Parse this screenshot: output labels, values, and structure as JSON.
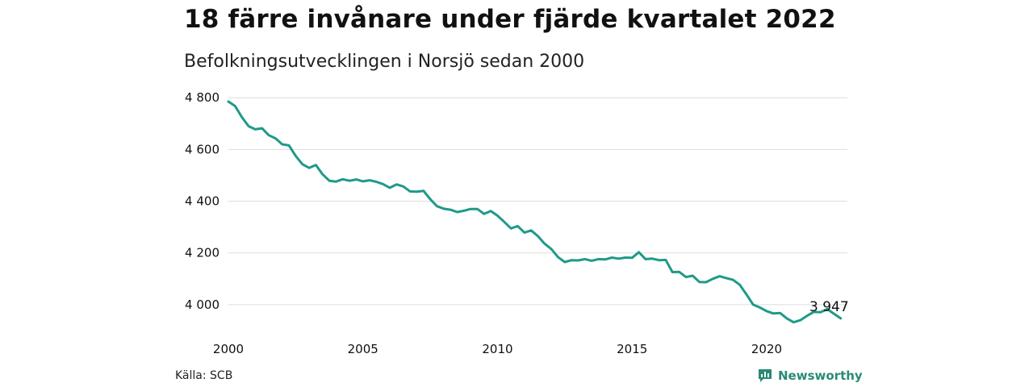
{
  "title": "18 färre invånare under fjärde kvartalet 2022",
  "subtitle": "Befolkningsutvecklingen i Norsjö sedan 2000",
  "source": "Källa: SCB",
  "brand": {
    "name": "Newsworthy",
    "icon": "newsworthy-logo-icon",
    "color": "#2a8a76"
  },
  "chart_data": {
    "type": "line",
    "title": "18 färre invånare under fjärde kvartalet 2022",
    "subtitle": "Befolkningsutvecklingen i Norsjö sedan 2000",
    "xlabel": "",
    "ylabel": "",
    "line_color": "#1f9a88",
    "grid": true,
    "xlim": [
      2000,
      2023
    ],
    "ylim": [
      3900,
      4810
    ],
    "y_ticks": [
      4000,
      4200,
      4400,
      4600,
      4800
    ],
    "y_tick_labels": [
      "4 000",
      "4 200",
      "4 400",
      "4 600",
      "4 800"
    ],
    "x_ticks": [
      2000,
      2005,
      2010,
      2015,
      2020
    ],
    "x_tick_labels": [
      "2000",
      "2005",
      "2010",
      "2015",
      "2020"
    ],
    "series": [
      {
        "x": [
          2000.0,
          2000.25,
          2000.5,
          2000.75,
          2001.0,
          2001.25,
          2001.5,
          2001.75,
          2002.0,
          2002.25,
          2002.5,
          2002.75,
          2003.0,
          2003.25,
          2003.5,
          2003.75,
          2004.0,
          2004.25,
          2004.5,
          2004.75,
          2005.0,
          2005.25,
          2005.5,
          2005.75,
          2006.0,
          2006.25,
          2006.5,
          2006.75,
          2007.0,
          2007.25,
          2007.5,
          2007.75,
          2008.0,
          2008.25,
          2008.5,
          2008.75,
          2009.0,
          2009.25,
          2009.5,
          2009.75,
          2010.0,
          2010.25,
          2010.5,
          2010.75,
          2011.0,
          2011.25,
          2011.5,
          2011.75,
          2012.0,
          2012.25,
          2012.5,
          2012.75,
          2013.0,
          2013.25,
          2013.5,
          2013.75,
          2014.0,
          2014.25,
          2014.5,
          2014.75,
          2015.0,
          2015.25,
          2015.5,
          2015.75,
          2016.0,
          2016.25,
          2016.5,
          2016.75,
          2017.0,
          2017.25,
          2017.5,
          2017.75,
          2018.0,
          2018.25,
          2018.5,
          2018.75,
          2019.0,
          2019.25,
          2019.5,
          2019.75,
          2020.0,
          2020.25,
          2020.5,
          2020.75,
          2021.0,
          2021.25,
          2021.5,
          2021.75,
          2022.0,
          2022.25,
          2022.5,
          2022.75
        ],
        "values": [
          4785,
          4768,
          4725,
          4690,
          4678,
          4682,
          4655,
          4643,
          4620,
          4616,
          4575,
          4543,
          4529,
          4540,
          4504,
          4479,
          4476,
          4485,
          4479,
          4484,
          4477,
          4481,
          4475,
          4466,
          4452,
          4465,
          4457,
          4438,
          4437,
          4440,
          4408,
          4381,
          4371,
          4367,
          4358,
          4363,
          4370,
          4370,
          4351,
          4362,
          4344,
          4320,
          4295,
          4304,
          4279,
          4287,
          4265,
          4236,
          4215,
          4184,
          4165,
          4172,
          4171,
          4176,
          4170,
          4176,
          4175,
          4182,
          4178,
          4182,
          4181,
          4203,
          4176,
          4178,
          4172,
          4173,
          4126,
          4127,
          4107,
          4112,
          4088,
          4087,
          4100,
          4110,
          4103,
          4096,
          4077,
          4040,
          4000,
          3989,
          3975,
          3966,
          3968,
          3947,
          3932,
          3940,
          3957,
          3972,
          3971,
          3983,
          3965,
          3947
        ]
      }
    ],
    "annotations": [
      {
        "x": 2022.75,
        "y": 3947,
        "text": "3 947"
      }
    ]
  }
}
